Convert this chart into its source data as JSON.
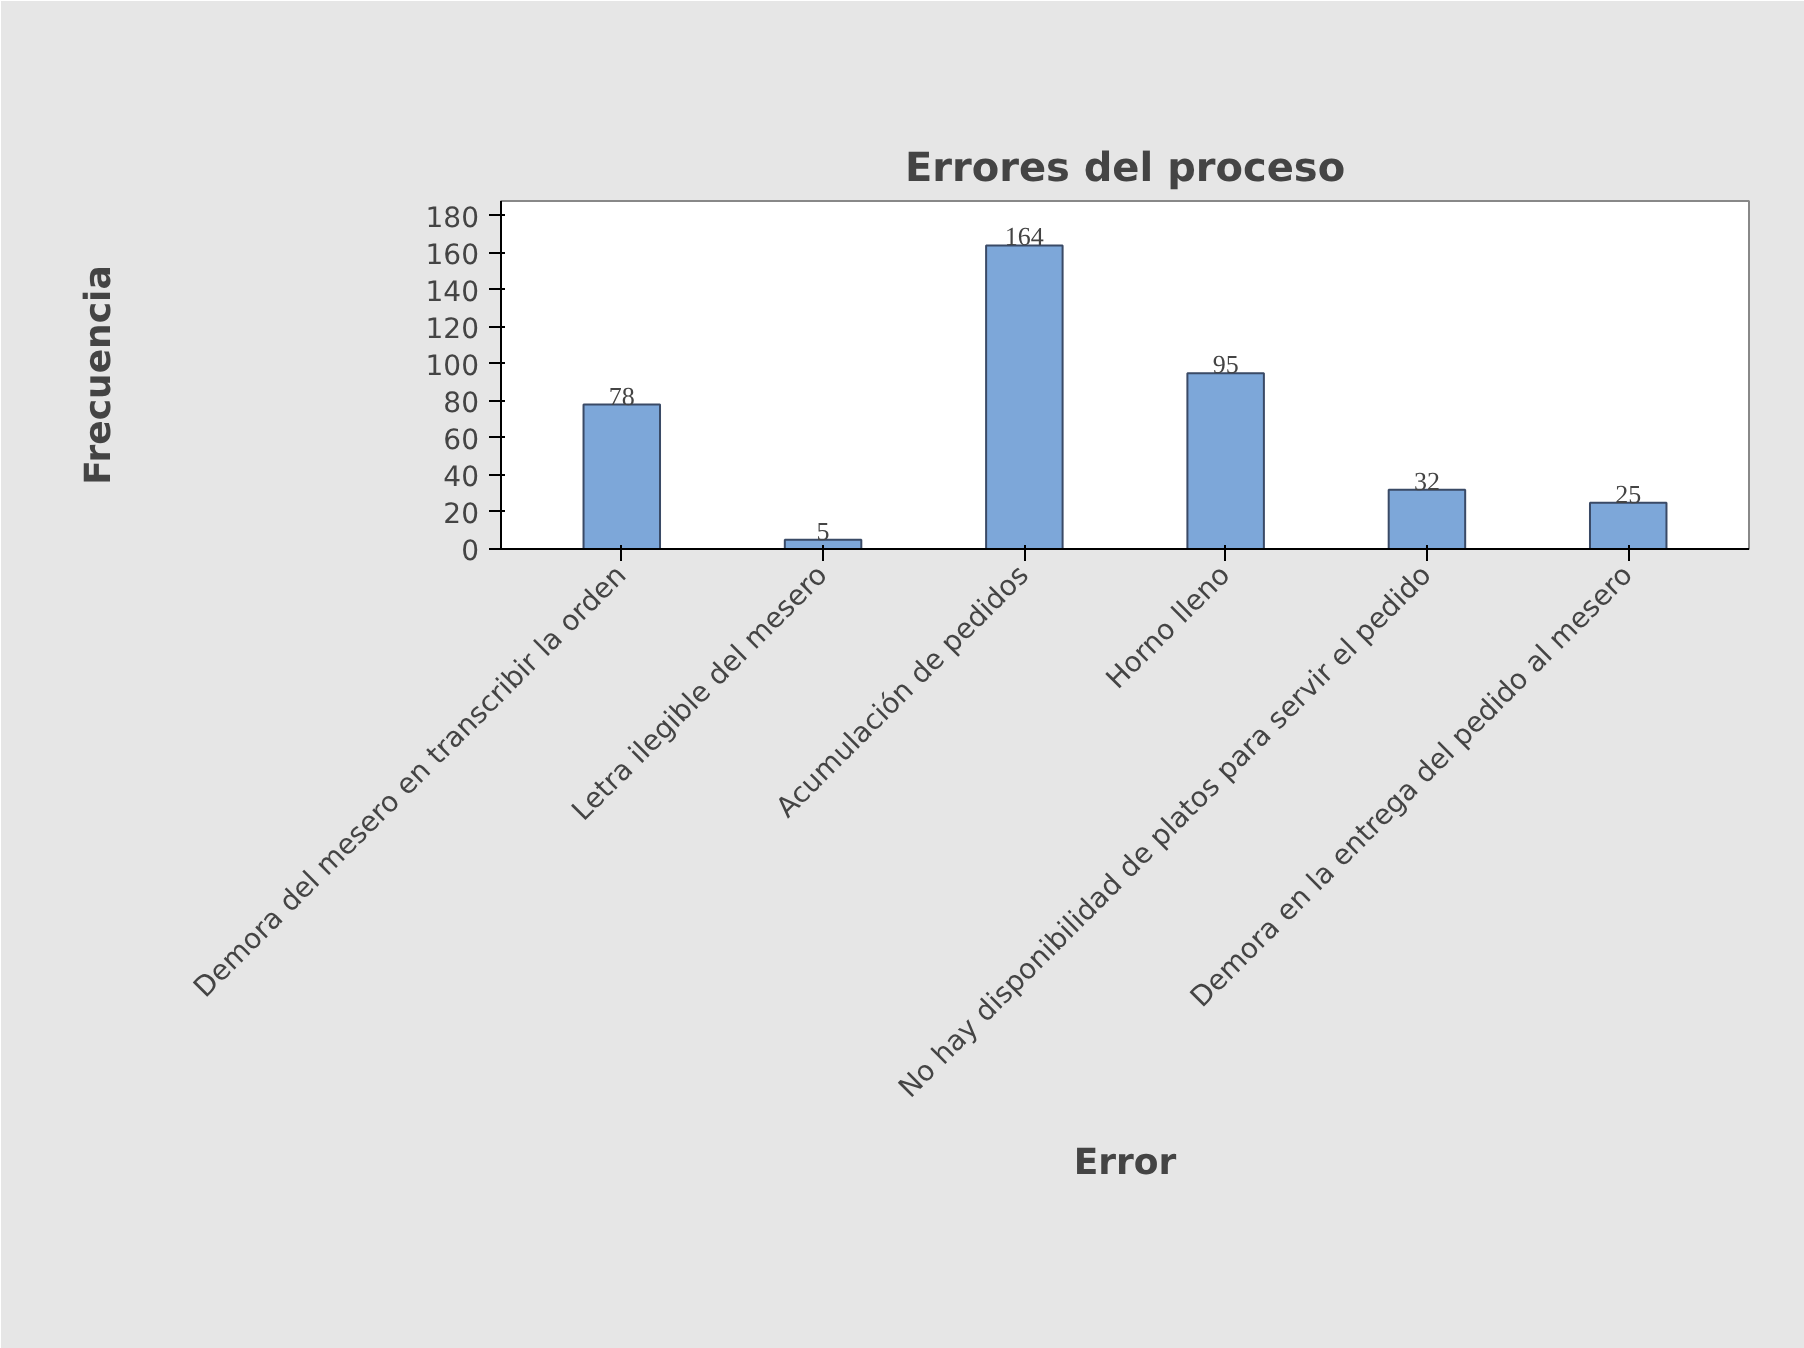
{
  "chart_data": {
    "type": "bar",
    "title": "Errores del proceso",
    "xlabel": "Error",
    "ylabel": "Frecuencia",
    "categories": [
      "Demora del mesero en transcribir la orden",
      "Letra ilegible del mesero",
      "Acumulación de pedidos",
      "Horno lleno",
      "No hay disponibilidad de platos para servir el pedido",
      "Demora en la entrega del pedido al mesero"
    ],
    "values": [
      78,
      5,
      164,
      95,
      32,
      25
    ],
    "color": "#7da7d9",
    "ylim": [
      0,
      188
    ],
    "yticks": [
      0,
      20,
      40,
      60,
      80,
      100,
      120,
      140,
      160,
      180
    ],
    "grid": false,
    "data_labels": true
  }
}
